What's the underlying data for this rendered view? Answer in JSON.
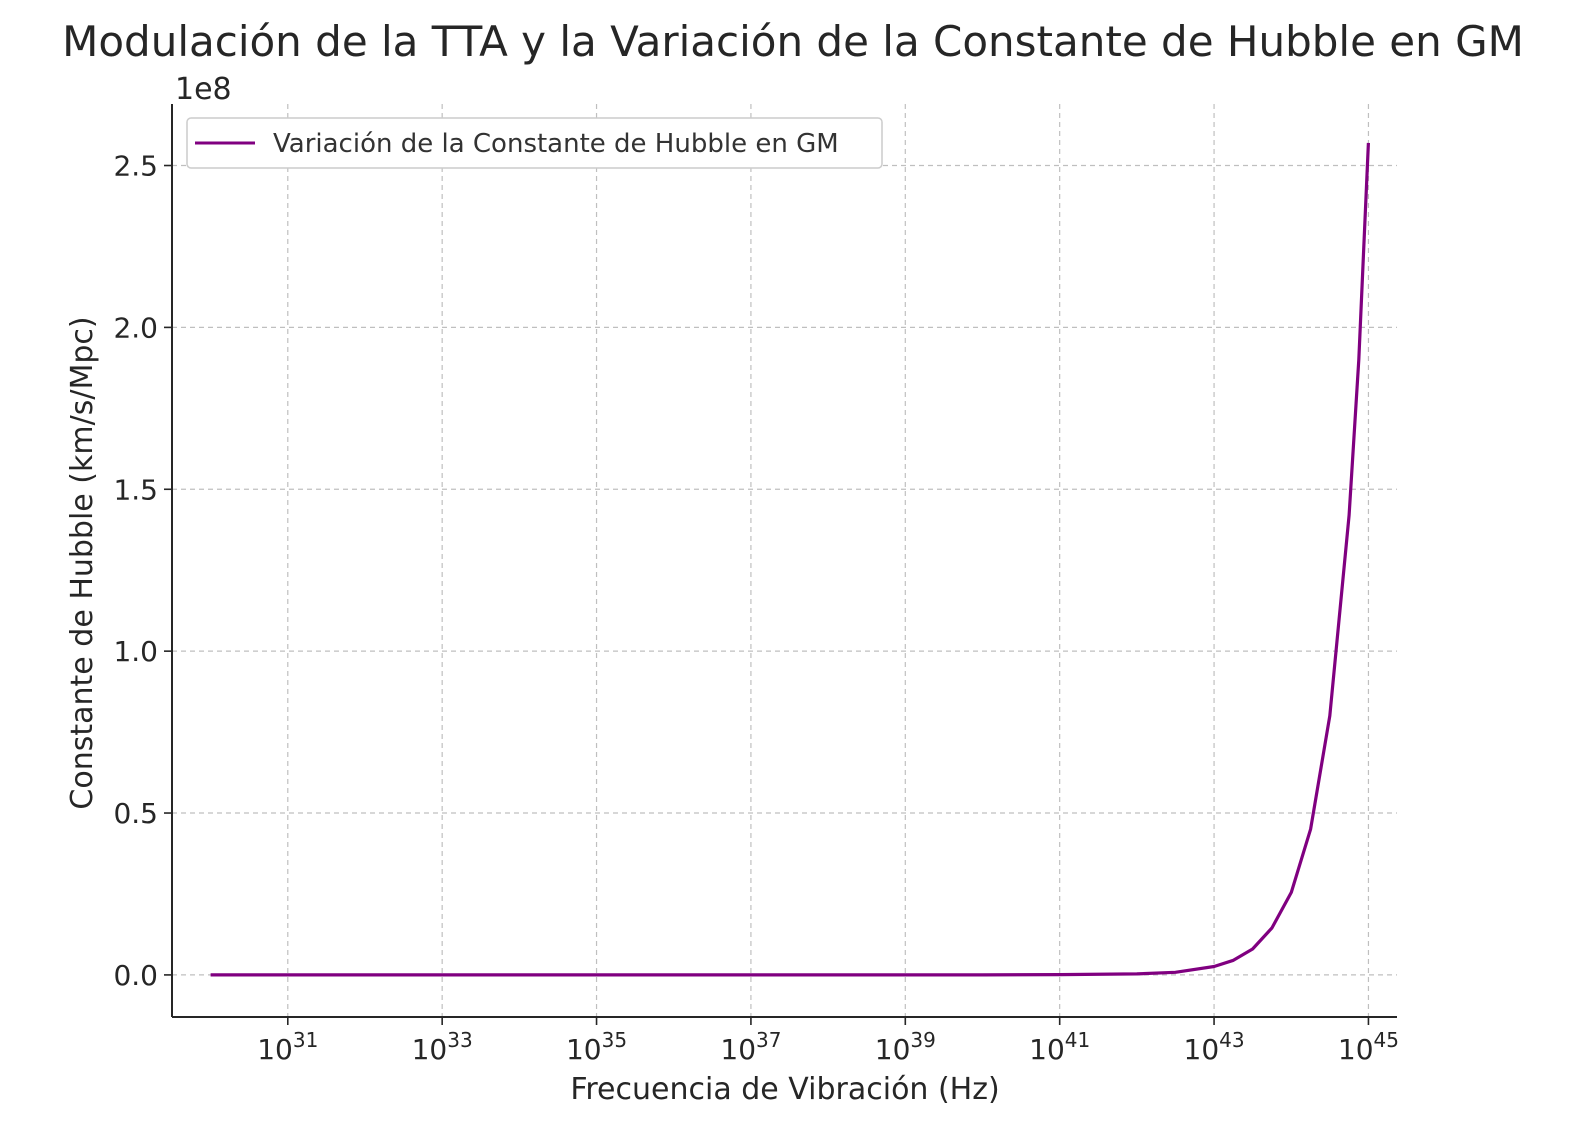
{
  "chart_data": {
    "type": "line",
    "title": "Modulación de la TTA y la Variación de la Constante de Hubble en GM",
    "xlabel": "Frecuencia de Vibración (Hz)",
    "ylabel": "Constante de Hubble (km/s/Mpc)",
    "y_offset_label": "1e8",
    "x_scale": "log",
    "xlim": [
      1e+30,
      1e+45
    ],
    "ylim": [
      -0.13,
      2.69
    ],
    "y_multiplier": 100000000,
    "grid": true,
    "legend_position": "top-left",
    "x_ticks": [
      {
        "base": "10",
        "exp": "31",
        "value": 1e+31
      },
      {
        "base": "10",
        "exp": "33",
        "value": 1e+33
      },
      {
        "base": "10",
        "exp": "35",
        "value": 1e+35
      },
      {
        "base": "10",
        "exp": "37",
        "value": 1e+37
      },
      {
        "base": "10",
        "exp": "39",
        "value": 1e+39
      },
      {
        "base": "10",
        "exp": "41",
        "value": 1e+41
      },
      {
        "base": "10",
        "exp": "43",
        "value": 1e+43
      },
      {
        "base": "10",
        "exp": "45",
        "value": 1e+45
      }
    ],
    "y_ticks": [
      {
        "label": "0.0",
        "value": 0.0
      },
      {
        "label": "0.5",
        "value": 0.5
      },
      {
        "label": "1.0",
        "value": 1.0
      },
      {
        "label": "1.5",
        "value": 1.5
      },
      {
        "label": "2.0",
        "value": 2.0
      },
      {
        "label": "2.5",
        "value": 2.5
      }
    ],
    "series": [
      {
        "name": "Variación de la Constante de Hubble en GM",
        "color": "#800080",
        "x": [
          1e+30,
          1e+32,
          1e+34,
          1e+36,
          1e+38,
          1e+40,
          1e+41,
          1e+42,
          3.16e+42,
          1e+43,
          1.78e+43,
          3.16e+43,
          5.62e+43,
          1e+44,
          1.78e+44,
          3.16e+44,
          5.62e+44,
          7.5e+44,
          1e+45
        ],
        "y": [
          0.0,
          0.0,
          0.0,
          0.0,
          0.0,
          0.0,
          0.001,
          0.003,
          0.008,
          0.026,
          0.045,
          0.08,
          0.145,
          0.255,
          0.45,
          0.8,
          1.42,
          1.9,
          2.57
        ]
      }
    ]
  }
}
